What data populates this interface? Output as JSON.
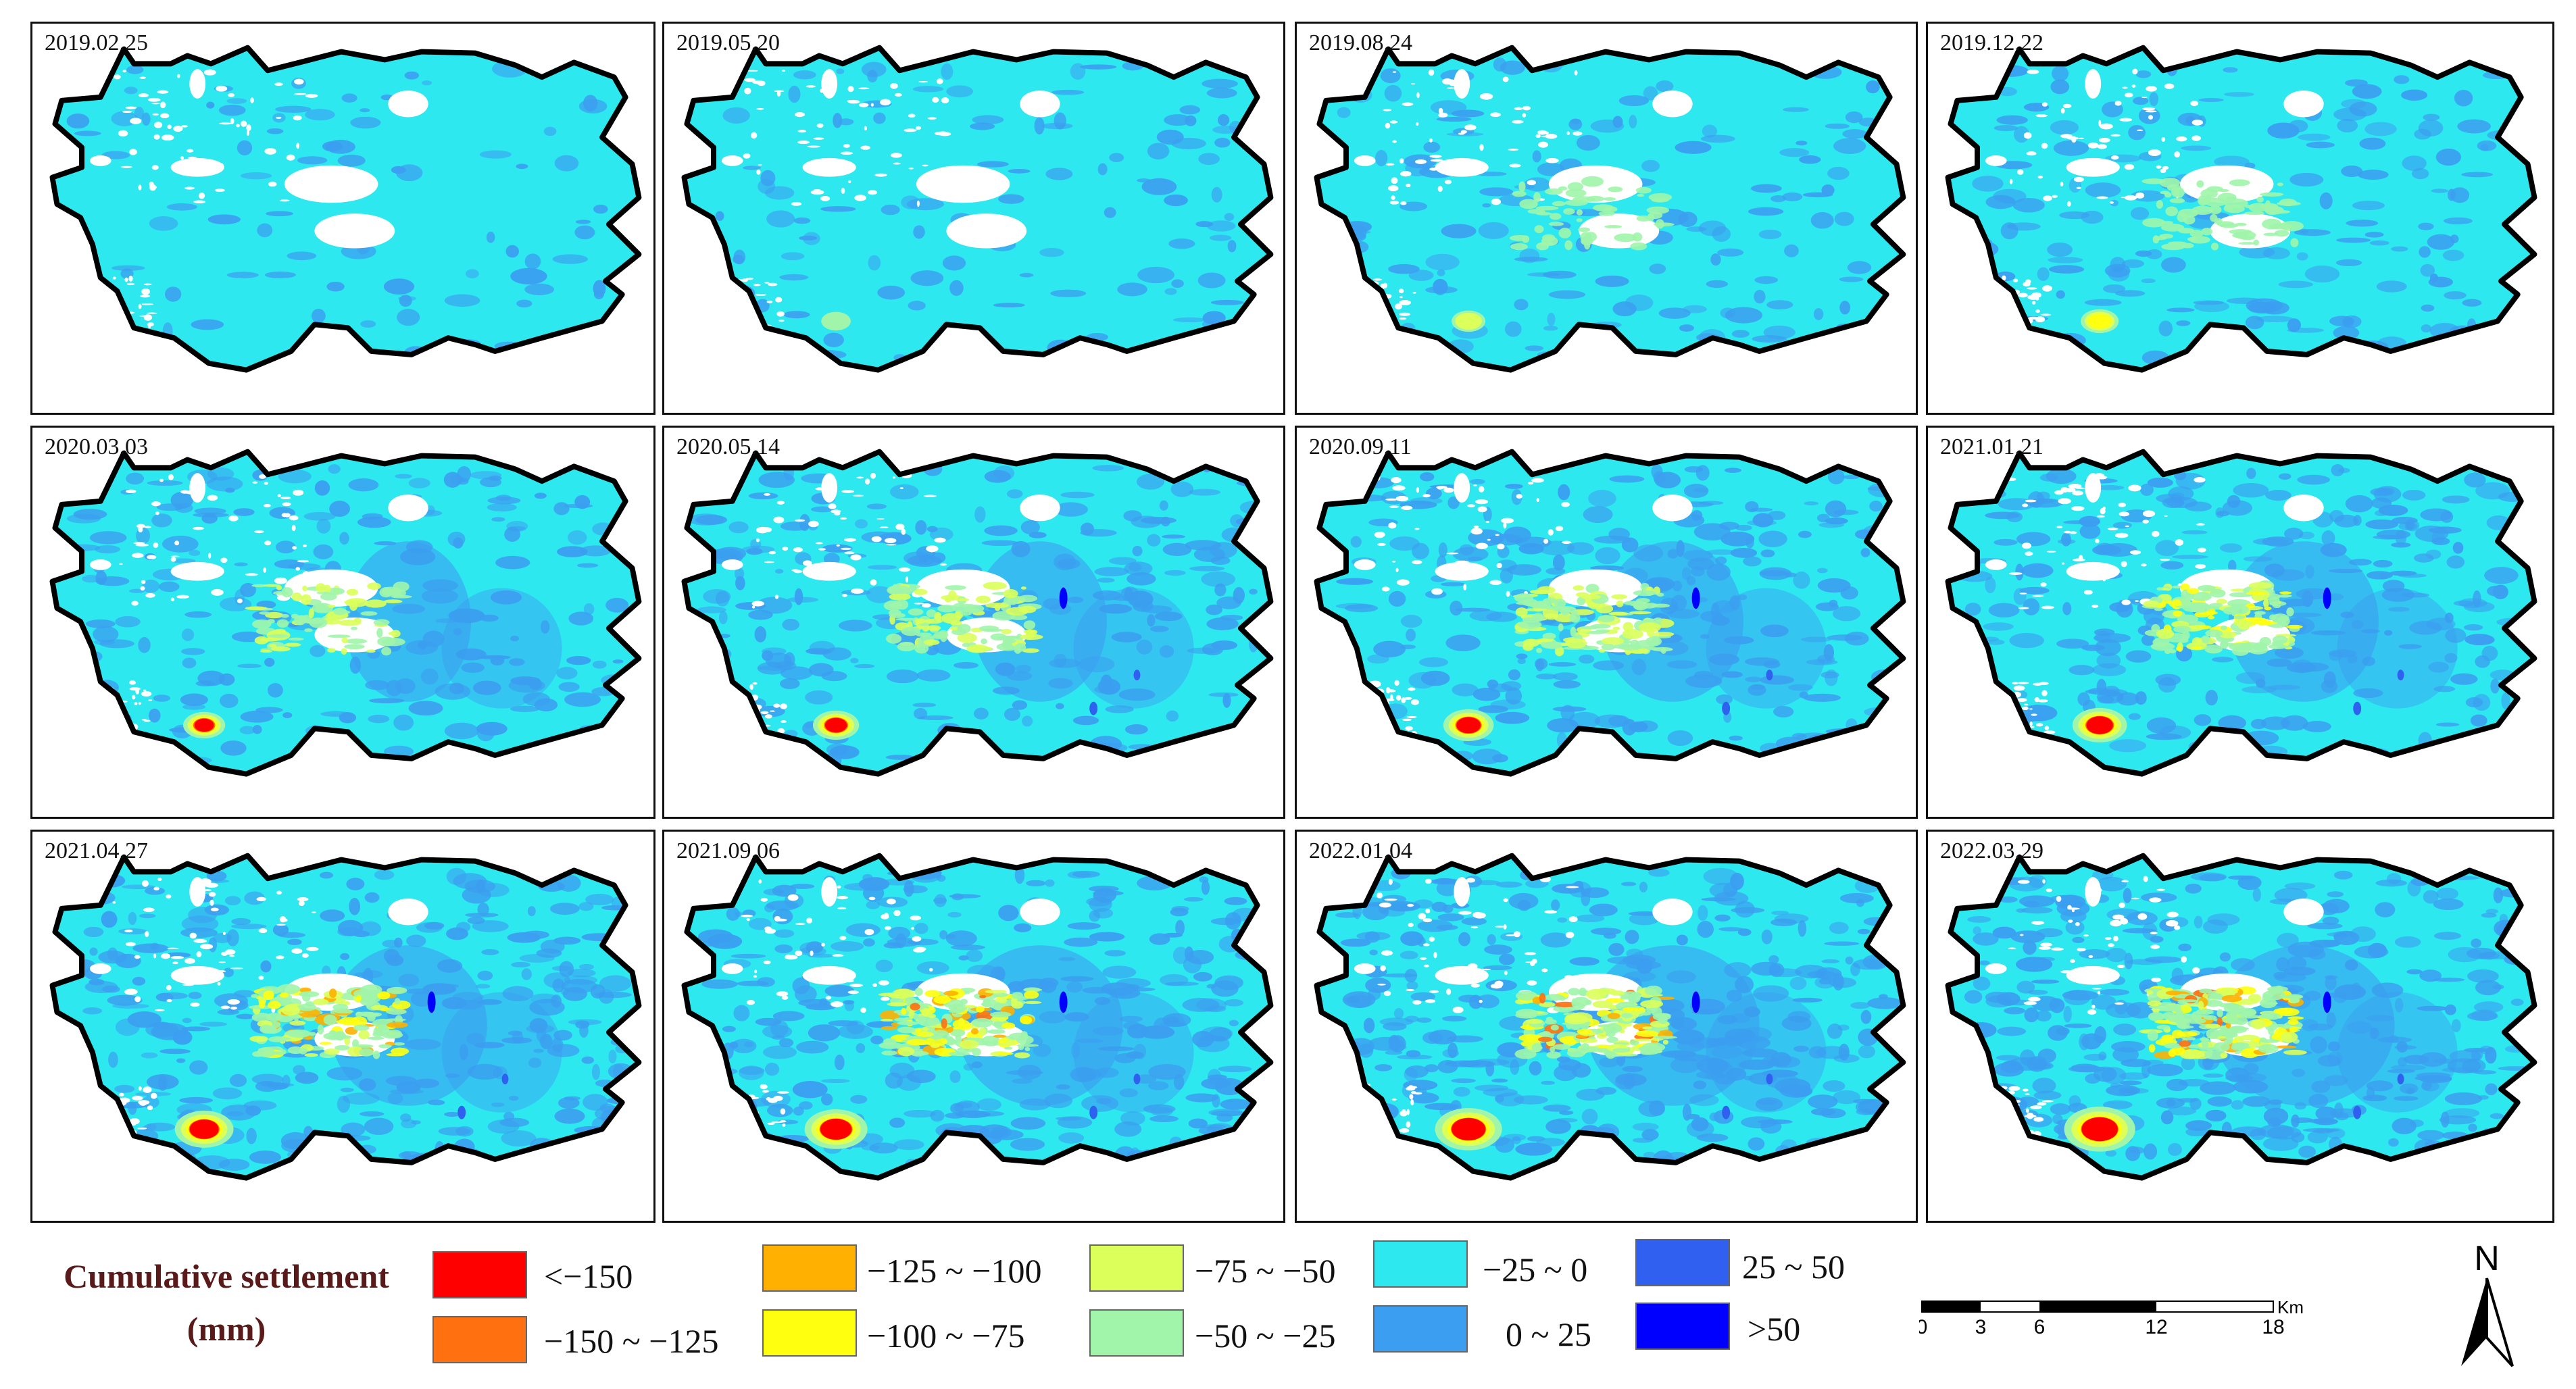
{
  "panels": [
    {
      "date": "2019.02.25",
      "stage": 0
    },
    {
      "date": "2019.05.20",
      "stage": 1
    },
    {
      "date": "2019.08.24",
      "stage": 2
    },
    {
      "date": "2019.12.22",
      "stage": 3
    },
    {
      "date": "2020.03.03",
      "stage": 4
    },
    {
      "date": "2020.05.14",
      "stage": 5
    },
    {
      "date": "2020.09.11",
      "stage": 6
    },
    {
      "date": "2021.01.21",
      "stage": 7
    },
    {
      "date": "2021.04.27",
      "stage": 8
    },
    {
      "date": "2021.09.06",
      "stage": 9
    },
    {
      "date": "2022.01.04",
      "stage": 10
    },
    {
      "date": "2022.03.29",
      "stage": 11
    }
  ],
  "legend": {
    "title_line1": "Cumulative settlement",
    "title_line2": "(mm)",
    "classes": [
      {
        "label": "<−150",
        "color": "#ff0000"
      },
      {
        "label": "−150 ~ −125",
        "color": "#ff7010"
      },
      {
        "label": "−125 ~ −100",
        "color": "#ffb000"
      },
      {
        "label": "−100 ~ −75",
        "color": "#ffff10"
      },
      {
        "label": "−75 ~ −50",
        "color": "#dcff5a"
      },
      {
        "label": "−50 ~ −25",
        "color": "#a0f5aa"
      },
      {
        "label": "−25 ~ 0",
        "color": "#2ee8f0"
      },
      {
        "label": "0 ~ 25",
        "color": "#3c9ef0"
      },
      {
        "label": "25 ~ 50",
        "color": "#3060f0"
      },
      {
        "label": ">50",
        "color": "#0000ff"
      }
    ]
  },
  "scale": {
    "ticks": [
      "0",
      "3",
      "6",
      "12",
      "18"
    ],
    "unit": "Km"
  },
  "north": {
    "label": "N"
  }
}
